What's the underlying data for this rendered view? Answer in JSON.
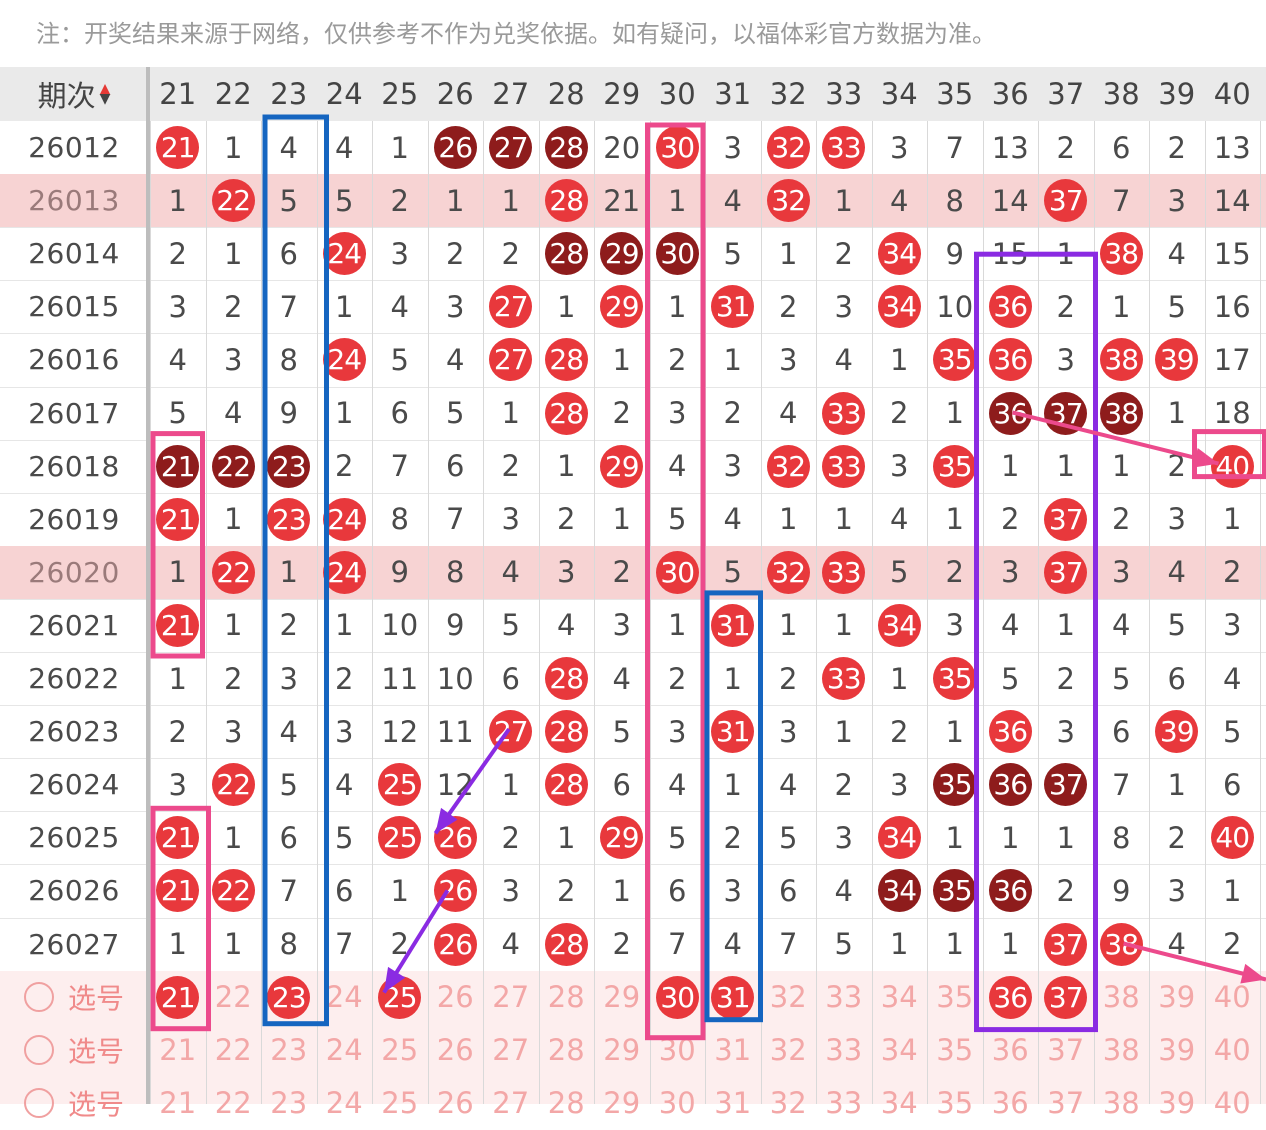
{
  "notice": "注：开奖结果来源于网络，仅供参考不作为兑奖依据。如有疑问，以福体彩官方数据为准。",
  "header": {
    "issue_label": "期次",
    "sort_up": "▲",
    "sort_down": "▼",
    "columns": [
      "21",
      "22",
      "23",
      "24",
      "25",
      "26",
      "27",
      "28",
      "29",
      "30",
      "31",
      "32",
      "33",
      "34",
      "35",
      "36",
      "37",
      "38",
      "39",
      "40"
    ]
  },
  "rows": [
    {
      "issue": "26012",
      "cells": [
        "21",
        "1",
        "4",
        "4",
        "1",
        "26",
        "27",
        "28",
        "20",
        "30",
        "3",
        "32",
        "33",
        "3",
        "7",
        "13",
        "2",
        "6",
        "2",
        "13"
      ]
    },
    {
      "issue": "26013",
      "highlight": true,
      "cells": [
        "1",
        "22",
        "5",
        "5",
        "2",
        "1",
        "1",
        "28",
        "21",
        "1",
        "4",
        "32",
        "1",
        "4",
        "8",
        "14",
        "37",
        "7",
        "3",
        "14"
      ]
    },
    {
      "issue": "26014",
      "cells": [
        "2",
        "1",
        "6",
        "24",
        "3",
        "2",
        "2",
        "28",
        "29",
        "30",
        "5",
        "1",
        "2",
        "34",
        "9",
        "15",
        "1",
        "38",
        "4",
        "15"
      ]
    },
    {
      "issue": "26015",
      "cells": [
        "3",
        "2",
        "7",
        "1",
        "4",
        "3",
        "27",
        "1",
        "29",
        "1",
        "31",
        "2",
        "3",
        "34",
        "10",
        "36",
        "2",
        "1",
        "5",
        "16"
      ]
    },
    {
      "issue": "26016",
      "cells": [
        "4",
        "3",
        "8",
        "24",
        "5",
        "4",
        "27",
        "28",
        "1",
        "2",
        "1",
        "3",
        "4",
        "1",
        "35",
        "36",
        "3",
        "38",
        "39",
        "17"
      ]
    },
    {
      "issue": "26017",
      "cells": [
        "5",
        "4",
        "9",
        "1",
        "6",
        "5",
        "1",
        "28",
        "2",
        "3",
        "2",
        "4",
        "33",
        "2",
        "1",
        "36",
        "37",
        "38",
        "1",
        "18"
      ]
    },
    {
      "issue": "26018",
      "cells": [
        "21",
        "22",
        "23",
        "2",
        "7",
        "6",
        "2",
        "1",
        "29",
        "4",
        "3",
        "32",
        "33",
        "3",
        "35",
        "1",
        "1",
        "1",
        "2",
        "40"
      ]
    },
    {
      "issue": "26019",
      "cells": [
        "21",
        "1",
        "23",
        "24",
        "8",
        "7",
        "3",
        "2",
        "1",
        "5",
        "4",
        "1",
        "1",
        "4",
        "1",
        "2",
        "37",
        "2",
        "3",
        "1"
      ]
    },
    {
      "issue": "26020",
      "highlight": true,
      "cells": [
        "1",
        "22",
        "1",
        "24",
        "9",
        "8",
        "4",
        "3",
        "2",
        "30",
        "5",
        "32",
        "33",
        "5",
        "2",
        "3",
        "37",
        "3",
        "4",
        "2"
      ]
    },
    {
      "issue": "26021",
      "cells": [
        "21",
        "1",
        "2",
        "1",
        "10",
        "9",
        "5",
        "4",
        "3",
        "1",
        "31",
        "1",
        "1",
        "34",
        "3",
        "4",
        "1",
        "4",
        "5",
        "3"
      ]
    },
    {
      "issue": "26022",
      "cells": [
        "1",
        "2",
        "3",
        "2",
        "11",
        "10",
        "6",
        "28",
        "4",
        "2",
        "1",
        "2",
        "33",
        "1",
        "35",
        "5",
        "2",
        "5",
        "6",
        "4"
      ]
    },
    {
      "issue": "26023",
      "cells": [
        "2",
        "3",
        "4",
        "3",
        "12",
        "11",
        "27",
        "28",
        "5",
        "3",
        "31",
        "3",
        "1",
        "2",
        "1",
        "36",
        "3",
        "6",
        "39",
        "5"
      ]
    },
    {
      "issue": "26024",
      "cells": [
        "3",
        "22",
        "5",
        "4",
        "25",
        "12",
        "1",
        "28",
        "6",
        "4",
        "1",
        "4",
        "2",
        "3",
        "35",
        "36",
        "37",
        "7",
        "1",
        "6"
      ]
    },
    {
      "issue": "26025",
      "cells": [
        "21",
        "1",
        "6",
        "5",
        "25",
        "26",
        "2",
        "1",
        "29",
        "5",
        "2",
        "5",
        "3",
        "34",
        "1",
        "1",
        "1",
        "8",
        "2",
        "40"
      ]
    },
    {
      "issue": "26026",
      "cells": [
        "21",
        "22",
        "7",
        "6",
        "1",
        "26",
        "3",
        "2",
        "1",
        "6",
        "3",
        "6",
        "4",
        "34",
        "35",
        "36",
        "2",
        "9",
        "3",
        "1"
      ]
    },
    {
      "issue": "26027",
      "cells": [
        "1",
        "1",
        "8",
        "7",
        "2",
        "26",
        "4",
        "28",
        "2",
        "7",
        "4",
        "7",
        "5",
        "1",
        "1",
        "1",
        "37",
        "38",
        "4",
        "2"
      ]
    }
  ],
  "pick_rows": [
    {
      "label": "选号",
      "selected": [
        "21",
        "23",
        "25",
        "30",
        "31",
        "36",
        "37"
      ]
    },
    {
      "label": "选号",
      "selected": []
    },
    {
      "label": "选号",
      "selected": []
    }
  ]
}
